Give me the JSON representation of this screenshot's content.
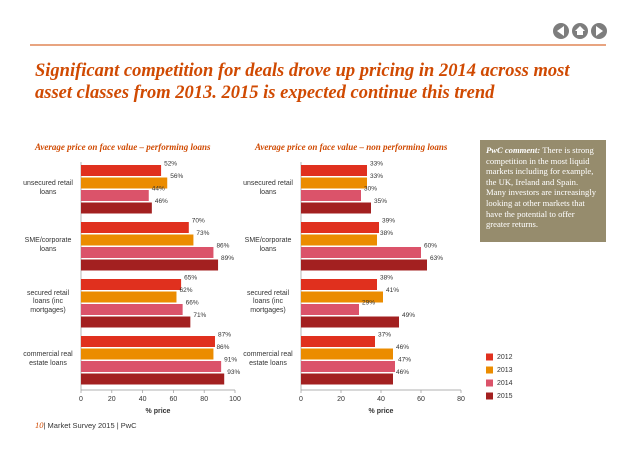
{
  "title": "Significant competition for deals drove up pricing in 2014 across most asset classes from 2013. 2015 is expected continue this trend",
  "comment": {
    "heading": "PwC comment:",
    "text": "There is strong competition in the most liquid markets including for example, the UK, Ireland and Spain. Many investors are increasingly looking at other markets that have the potential to offer greater returns."
  },
  "footer": {
    "page": "10",
    "text": "| Market Survey 2015 | PwC"
  },
  "chart_data": [
    {
      "type": "bar",
      "title": "Average price on face value – performing loans",
      "x_label": "% price",
      "categories": [
        "unsecured retail loans",
        "SME/corporate loans",
        "secured retail loans (inc mortgages)",
        "commercial real estate loans"
      ],
      "series": [
        {
          "color": "#e0301e",
          "values": [
            52,
            70,
            65,
            87
          ],
          "value_labels": [
            "52%",
            "70%",
            "65%",
            "87%"
          ]
        },
        {
          "color": "#eb8c00",
          "values": [
            56,
            73,
            62,
            86
          ],
          "value_labels": [
            "56%",
            "73%",
            "62%",
            "86%"
          ]
        },
        {
          "color": "#db536a",
          "values": [
            44,
            86,
            66,
            91
          ],
          "value_labels": [
            "44%",
            "86%",
            "66%",
            "91%"
          ]
        },
        {
          "color": "#a32020",
          "values": [
            46,
            89,
            71,
            93
          ],
          "value_labels": [
            "46%",
            "89%",
            "71%",
            "93%"
          ]
        }
      ],
      "xlim": [
        0,
        100
      ],
      "xticks": [
        0,
        20,
        40,
        60,
        80,
        100
      ]
    },
    {
      "type": "bar",
      "title": "Average price on face value – non performing loans",
      "x_label": "% price",
      "categories": [
        "unsecured retail loans",
        "SME/corporate loans",
        "secured retail loans (inc mortgages)",
        "commercial real estate loans"
      ],
      "series": [
        {
          "name": "2012",
          "color": "#e0301e",
          "values": [
            33,
            39,
            38,
            37
          ],
          "value_labels": [
            "33%",
            "39%",
            "38%",
            "37%"
          ]
        },
        {
          "name": "2013",
          "color": "#eb8c00",
          "values": [
            33,
            38,
            41,
            46
          ],
          "value_labels": [
            "33%",
            "38%",
            "41%",
            "46%"
          ]
        },
        {
          "name": "2014",
          "color": "#db536a",
          "values": [
            30,
            60,
            29,
            47
          ],
          "value_labels": [
            "30%",
            "60%",
            "29%",
            "47%"
          ]
        },
        {
          "name": "2015",
          "color": "#a32020",
          "values": [
            35,
            63,
            49,
            46
          ],
          "value_labels": [
            "35%",
            "63%",
            "49%",
            "46%"
          ]
        }
      ],
      "xlim": [
        0,
        80
      ],
      "xticks": [
        0,
        20,
        40,
        60,
        80
      ],
      "legend": "bottom-right"
    }
  ]
}
